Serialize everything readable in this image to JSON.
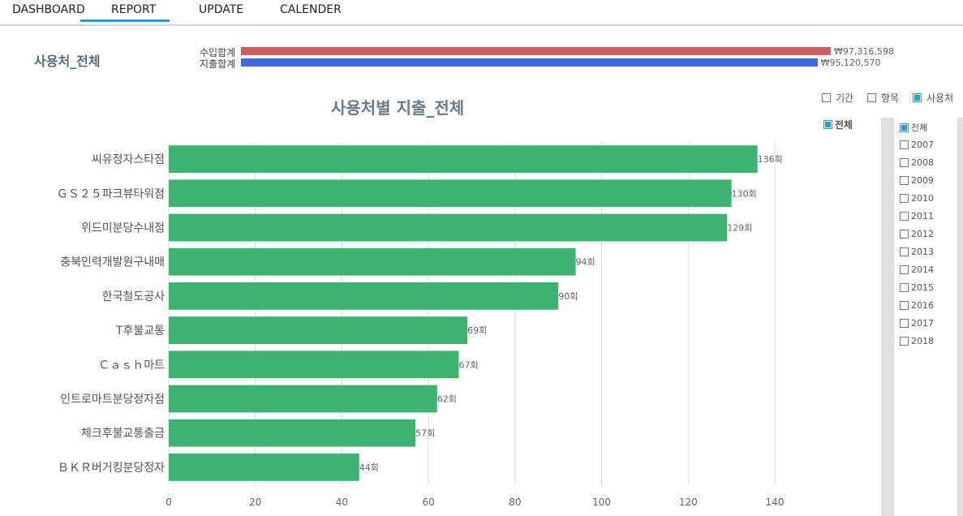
{
  "nav": {
    "tabs": [
      {
        "label": "DASHBOARD"
      },
      {
        "label": "REPORT"
      },
      {
        "label": "UPDATE"
      },
      {
        "label": "CALENDER"
      }
    ],
    "active_tab": "REPORT",
    "accent_color": "#1aa3d4"
  },
  "header": {
    "title": "사용처_전체",
    "income_label": "수입합계",
    "income_value": "₩97,316,598",
    "income_color": "#cd5c5c",
    "expense_label": "지출합계",
    "expense_value": "₩95,120,570",
    "expense_color": "#4169e1"
  },
  "summary_bars": {
    "income": 97316598,
    "expense": 95120570
  },
  "filters": {
    "period": {
      "label": "기간",
      "checked": false
    },
    "item": {
      "label": "항목",
      "checked": false
    },
    "place": {
      "label": "사용처",
      "checked": true
    },
    "all": {
      "label": "전체",
      "checked": true
    }
  },
  "years": {
    "all_label": "전체",
    "list": [
      "2007",
      "2008",
      "2009",
      "2010",
      "2011",
      "2012",
      "2013",
      "2014",
      "2015",
      "2016",
      "2017",
      "2018"
    ]
  },
  "chart_data": {
    "type": "bar",
    "orientation": "horizontal",
    "title": "사용처별 지출_전체",
    "categories": [
      "씨유정자스타점",
      "ＧＳ２５파크뷰타워점",
      "위드미분당수내점",
      "충북인력개발원구내매",
      "한국철도공사",
      "T후불교통",
      "Ｃａｓｈ마트",
      "인트로마트분당정자점",
      "체크후불교통출금",
      "ＢＫＲ버거킹분당정자"
    ],
    "values": [
      136,
      130,
      129,
      94,
      90,
      69,
      67,
      62,
      57,
      44
    ],
    "value_suffix": "회",
    "xlim": [
      0,
      140
    ],
    "xticks": [
      0,
      20,
      40,
      60,
      80,
      100,
      120,
      140
    ],
    "grid": true,
    "bar_color": "#3cb371"
  }
}
